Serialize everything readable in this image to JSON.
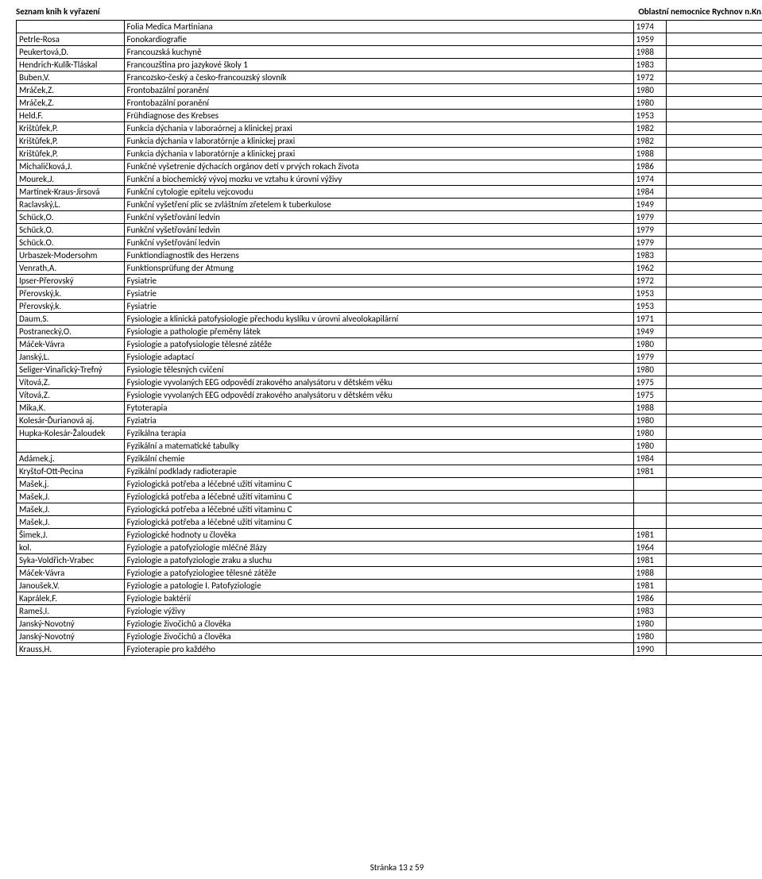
{
  "header_left": "Seznam knih k vyřazení",
  "header_right": "Oblastní nemocnice Rychnov n.Kn. a.s.",
  "footer": "Stránka 13 z 59",
  "rows": [
    [
      "",
      "Folia Medica Martiniana",
      "1974",
      ""
    ],
    [
      "Petrle-Rosa",
      "Fonokardiografie",
      "1959",
      ""
    ],
    [
      "Peukertová,D.",
      "Francouzská kuchyně",
      "1988",
      ""
    ],
    [
      "Hendrich-Kulík-Tláskal",
      "Francouzština pro jazykové školy 1",
      "1983",
      ""
    ],
    [
      "Buben,V.",
      "Francozsko-český a česko-francouzský slovník",
      "1972",
      ""
    ],
    [
      "Mráček,Z.",
      "Frontobazální poranění",
      "1980",
      ""
    ],
    [
      "Mráček,Z.",
      "Frontobazální poranění",
      "1980",
      ""
    ],
    [
      "Held,F.",
      "Frühdiagnose des Krebses",
      "1953",
      ""
    ],
    [
      "Krištůfek,P.",
      "Funkcia dýchania v laboraórnej a klinickej praxi",
      "1982",
      ""
    ],
    [
      "Krištůfek,P.",
      "Funkcia dýchania v laboratórnje a klinickej praxi",
      "1982",
      ""
    ],
    [
      "Krištůfek,P.",
      "Funkcia dýchania v laboratórnje a klinickej praxi",
      "1988",
      ""
    ],
    [
      "Michaličková,J.",
      "Funkčné vyšetrenie dýchacích orgánov detí v prvých rokach života",
      "1986",
      ""
    ],
    [
      "Mourek,J.",
      "Funkční a biochemický vývoj mozku ve vztahu k úrovni výživy",
      "1974",
      ""
    ],
    [
      "Martínek-Kraus-Jirsová",
      "Funkční cytologie epitelu vejcovodu",
      "1984",
      ""
    ],
    [
      "Raclavský,L.",
      "Funkční vyšetření plic se zvláštním zřetelem k tuberkulose",
      "1949",
      ""
    ],
    [
      "Schück,O.",
      "Funkční vyšetřování ledvin",
      "1979",
      ""
    ],
    [
      "Schück,O.",
      "Funkční vyšetřování ledvin",
      "1979",
      ""
    ],
    [
      "Schück.O.",
      "Funkční vyšetřování ledvin",
      "1979",
      ""
    ],
    [
      "Urbaszek-Modersohm",
      "Funktiondiagnostik des Herzens",
      "1983",
      ""
    ],
    [
      "Venrath,A.",
      "Funktionsprüfung der Atmung",
      "1962",
      ""
    ],
    [
      "Ipser-Přerovský",
      "Fysiatrie",
      "1972",
      ""
    ],
    [
      "Přerovský,k.",
      "Fysiatrie",
      "1953",
      ""
    ],
    [
      "Přerovský,k.",
      "Fysiatrie",
      "1953",
      ""
    ],
    [
      "Daum,S.",
      "Fysiologie a klinická patofysiologie přechodu kyslíku v úrovni alveolokapilární",
      "1971",
      ""
    ],
    [
      "Postranecký,O.",
      "Fysiologie a pathologie přeměny látek",
      "1949",
      ""
    ],
    [
      "Máček-Vávra",
      "Fysiologie a patofysiologie tělesné zátěže",
      "1980",
      ""
    ],
    [
      "Janský,L.",
      "Fysiologie adaptací",
      "1979",
      ""
    ],
    [
      "Seliger-Vinařický-Trefný",
      "Fysiologie tělesných cvičení",
      "1980",
      ""
    ],
    [
      "Vítová,Z.",
      "Fysiologie vyvolaných EEG odpovědí zrakového analysátoru v dětském věku",
      "1975",
      ""
    ],
    [
      "Vítová,Z.",
      "Fysiologie vyvolaných EEG odpovědí zrakového analysátoru v dětském věku",
      "1975",
      ""
    ],
    [
      "Mika,K.",
      "Fytoterapia",
      "1988",
      ""
    ],
    [
      "Kolesár-Ďurianová aj.",
      "Fyziatria",
      "1980",
      ""
    ],
    [
      "Hupka-Kolesár-Žaloudek",
      "Fyzikálna terapia",
      "1980",
      ""
    ],
    [
      "",
      "Fyzikální a matematické tabulky",
      "1980",
      ""
    ],
    [
      "Adámek,j.",
      "Fyzikální chemie",
      "1984",
      ""
    ],
    [
      "Kryštof-Ott-Pecina",
      "Fyzikální podklady radioterapie",
      "1981",
      ""
    ],
    [
      "Mašek,j.",
      "Fyziologická potřeba a léčebné užití vitaminu C",
      "",
      ""
    ],
    [
      "Mašek,J.",
      "Fyziologická potřeba a léčebné užití vitaminu C",
      "",
      ""
    ],
    [
      "Mašek,J.",
      "Fyziologická potřeba a léčebné užití vitaminu C",
      "",
      ""
    ],
    [
      "Mašek,J.",
      "Fyziologická potřeba a léčebné užití vitaminu C",
      "",
      ""
    ],
    [
      "Šimek,J.",
      "Fyziologické hodnoty u člověka",
      "1981",
      ""
    ],
    [
      "kol.",
      "Fyziologie a patofyziologie mléčné žlázy",
      "1964",
      ""
    ],
    [
      "Syka-Voldřich-Vrabec",
      "Fyziologie a patofyziologie zraku a sluchu",
      "1981",
      ""
    ],
    [
      "Máček-Vávra",
      "Fyziologie a patofyziologiee tělesné zátěže",
      "1988",
      ""
    ],
    [
      "Janoušek,V.",
      "Fyziologie a patologie I. Patofyziologie",
      "1981",
      ""
    ],
    [
      "Kaprálek,F.",
      "Fyziologie baktérií",
      "1986",
      ""
    ],
    [
      "Rameš,I.",
      "Fyziologie výživy",
      "1983",
      ""
    ],
    [
      "Janský-Novotný",
      "Fyziologie živočichů a člověka",
      "1980",
      ""
    ],
    [
      "Janský-Novotný",
      "Fyziologie živočichů a člověka",
      "1980",
      ""
    ],
    [
      "Krauss,H.",
      "Fyzioterapie pro každého",
      "1990",
      ""
    ]
  ]
}
